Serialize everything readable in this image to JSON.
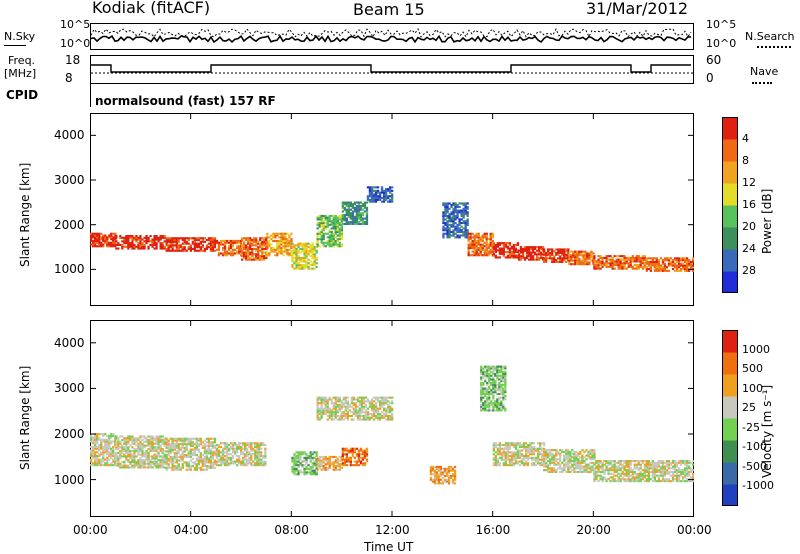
{
  "header": {
    "station": "Kodiak (fitACF)",
    "beam": "Beam 15",
    "date": "31/Mar/2012",
    "cpid_label": "CPID",
    "cpid_text": "normalsound (fast) 157 RF",
    "nsky_label": "N.Sky",
    "nsearch_label": "N.Search",
    "freq_label_1": "Freq.",
    "freq_label_2": "[MHz]",
    "nave_label": "Nave",
    "nsky_ticks": [
      "10^5",
      "10^0"
    ],
    "nsearch_ticks": [
      "10^5",
      "10^0"
    ],
    "freq_ticks": [
      "18",
      "8"
    ],
    "nave_ticks": [
      "60",
      "0"
    ]
  },
  "chart_data": [
    {
      "type": "heatmap",
      "title": "Power",
      "ylabel": "Slant Range [km]",
      "xlabel": "Time UT",
      "x_ticks": [
        "00:00",
        "04:00",
        "08:00",
        "12:00",
        "16:00",
        "20:00",
        "00:00"
      ],
      "y_ticks": [
        "1000",
        "2000",
        "3000",
        "4000"
      ],
      "colorbar_label": "Power [dB]",
      "colorbar_ticks": [
        "4",
        "8",
        "12",
        "16",
        "20",
        "24",
        "28"
      ],
      "colors": [
        "#1f2dd8",
        "#3a6ab8",
        "#3d8f5c",
        "#57c25b",
        "#e3dc2b",
        "#f0a31f",
        "#f06a15",
        "#e02010"
      ],
      "xlim": [
        0,
        24
      ],
      "ylim": [
        180,
        4500
      ],
      "bands": [
        {
          "t": [
            0,
            1
          ],
          "lo": 1500,
          "hi": 1800,
          "level": 7
        },
        {
          "t": [
            1,
            3
          ],
          "lo": 1450,
          "hi": 1750,
          "level": 7
        },
        {
          "t": [
            3,
            5
          ],
          "lo": 1400,
          "hi": 1700,
          "level": 7
        },
        {
          "t": [
            5,
            6
          ],
          "lo": 1300,
          "hi": 1650,
          "level": 6
        },
        {
          "t": [
            6,
            7
          ],
          "lo": 1200,
          "hi": 1700,
          "level": 6
        },
        {
          "t": [
            7,
            8
          ],
          "lo": 1300,
          "hi": 1800,
          "level": 5
        },
        {
          "t": [
            8,
            9
          ],
          "lo": 1000,
          "hi": 1600,
          "level": 4
        },
        {
          "t": [
            9,
            10
          ],
          "lo": 1500,
          "hi": 2200,
          "level": 3
        },
        {
          "t": [
            10,
            11
          ],
          "lo": 2000,
          "hi": 2500,
          "level": 2
        },
        {
          "t": [
            11,
            12
          ],
          "lo": 2500,
          "hi": 2850,
          "level": 1
        },
        {
          "t": [
            14,
            15
          ],
          "lo": 1700,
          "hi": 2500,
          "level": 1
        },
        {
          "t": [
            15,
            16
          ],
          "lo": 1300,
          "hi": 1800,
          "level": 6
        },
        {
          "t": [
            16,
            17
          ],
          "lo": 1250,
          "hi": 1600,
          "level": 7
        },
        {
          "t": [
            17,
            18
          ],
          "lo": 1200,
          "hi": 1500,
          "level": 7
        },
        {
          "t": [
            18,
            19
          ],
          "lo": 1150,
          "hi": 1450,
          "level": 7
        },
        {
          "t": [
            19,
            20
          ],
          "lo": 1100,
          "hi": 1400,
          "level": 6
        },
        {
          "t": [
            20,
            22
          ],
          "lo": 1000,
          "hi": 1300,
          "level": 6
        },
        {
          "t": [
            22,
            24
          ],
          "lo": 950,
          "hi": 1250,
          "level": 6
        }
      ]
    },
    {
      "type": "heatmap",
      "title": "Velocity",
      "ylabel": "Slant Range [km]",
      "xlabel": "Time UT",
      "x_ticks": [
        "00:00",
        "04:00",
        "08:00",
        "12:00",
        "16:00",
        "20:00",
        "00:00"
      ],
      "y_ticks": [
        "1000",
        "2000",
        "3000",
        "4000"
      ],
      "colorbar_label": "Velocity [m s⁻¹]",
      "colorbar_ticks": [
        "1000",
        "500",
        "100",
        "25",
        "-25",
        "-100",
        "-500",
        "-1000"
      ],
      "colors": [
        "#2040c0",
        "#3a6aa8",
        "#3f8f50",
        "#72d050",
        "#c8c8c0",
        "#f0a020",
        "#f07010",
        "#e02010"
      ],
      "xlim": [
        0,
        24
      ],
      "ylim": [
        180,
        4500
      ],
      "bands": [
        {
          "t": [
            0,
            1
          ],
          "lo": 1300,
          "hi": 2000,
          "level": 4
        },
        {
          "t": [
            1,
            3
          ],
          "lo": 1250,
          "hi": 1950,
          "level": 4
        },
        {
          "t": [
            3,
            5
          ],
          "lo": 1200,
          "hi": 1900,
          "level": 4
        },
        {
          "t": [
            5,
            7
          ],
          "lo": 1300,
          "hi": 1800,
          "level": 4
        },
        {
          "t": [
            8,
            9
          ],
          "lo": 1100,
          "hi": 1600,
          "level": 3
        },
        {
          "t": [
            9,
            10
          ],
          "lo": 1200,
          "hi": 1500,
          "level": 5
        },
        {
          "t": [
            10,
            11
          ],
          "lo": 1300,
          "hi": 1700,
          "level": 6
        },
        {
          "t": [
            9,
            12
          ],
          "lo": 2300,
          "hi": 2800,
          "level": 4
        },
        {
          "t": [
            13.5,
            14.5
          ],
          "lo": 900,
          "hi": 1300,
          "level": 5
        },
        {
          "t": [
            15.5,
            16.5
          ],
          "lo": 2500,
          "hi": 3500,
          "level": 3
        },
        {
          "t": [
            16,
            18
          ],
          "lo": 1300,
          "hi": 1800,
          "level": 4
        },
        {
          "t": [
            18,
            20
          ],
          "lo": 1150,
          "hi": 1650,
          "level": 4
        },
        {
          "t": [
            20,
            24
          ],
          "lo": 950,
          "hi": 1400,
          "level": 4
        }
      ]
    }
  ]
}
